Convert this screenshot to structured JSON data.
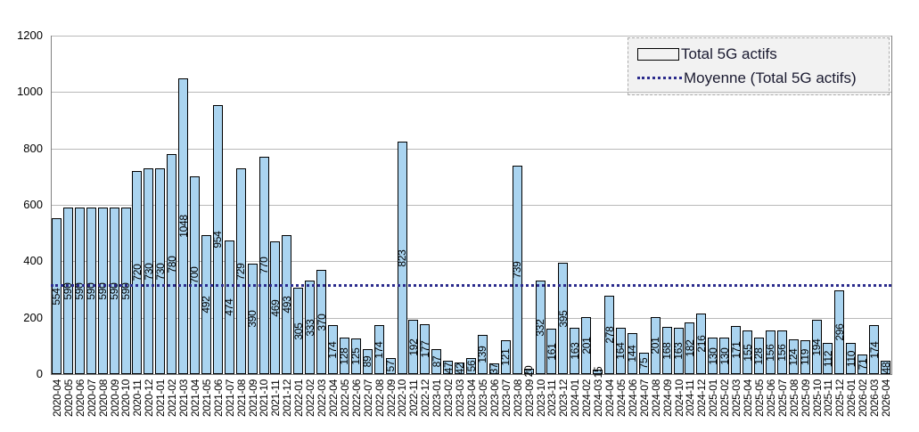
{
  "chart_data": {
    "type": "bar",
    "title": "",
    "xlabel": "",
    "ylabel": "",
    "ylim": [
      0,
      1200
    ],
    "yticks": [
      0,
      200,
      400,
      600,
      800,
      1000,
      1200
    ],
    "grid": true,
    "legend_position": "top-right",
    "categories": [
      "2020-04",
      "2020-05",
      "2020-06",
      "2020-07",
      "2020-08",
      "2020-09",
      "2020-10",
      "2020-11",
      "2020-12",
      "2021-01",
      "2021-02",
      "2021-03",
      "2021-04",
      "2021-05",
      "2021-06",
      "2021-07",
      "2021-08",
      "2021-09",
      "2021-10",
      "2021-11",
      "2021-12",
      "2022-01",
      "2022-02",
      "2022-03",
      "2022-04",
      "2022-05",
      "2022-06",
      "2022-07",
      "2022-08",
      "2022-09",
      "2022-10",
      "2022-11",
      "2022-12",
      "2023-01",
      "2023-02",
      "2023-03",
      "2023-04",
      "2023-05",
      "2023-06",
      "2023-07",
      "2023-08",
      "2023-09",
      "2023-10",
      "2023-11",
      "2023-12",
      "2024-01",
      "2024-02",
      "2024-03",
      "2024-04",
      "2024-05",
      "2024-06",
      "2024-07",
      "2024-08",
      "2024-09",
      "2024-10",
      "2024-11",
      "2024-12",
      "2025-01",
      "2025-02",
      "2025-03",
      "2025-04",
      "2025-05",
      "2025-06",
      "2025-07",
      "2025-08",
      "2025-09",
      "2025-10",
      "2025-11",
      "2025-12",
      "2026-01",
      "2026-02",
      "2026-03",
      "2026-04"
    ],
    "series": [
      {
        "name": "Total 5G actifs",
        "values": [
          554,
          590,
          590,
          590,
          590,
          590,
          590,
          720,
          730,
          730,
          780,
          1048,
          700,
          492,
          954,
          474,
          729,
          390,
          770,
          469,
          493,
          305,
          333,
          370,
          174,
          128,
          125,
          89,
          174,
          57,
          823,
          192,
          177,
          87,
          47,
          42,
          56,
          139,
          37,
          121,
          739,
          20,
          332,
          161,
          395,
          163,
          201,
          15,
          278,
          164,
          144,
          75,
          201,
          168,
          163,
          182,
          216,
          130,
          130,
          171,
          155,
          128,
          156,
          156,
          124,
          119,
          194,
          112,
          296,
          110,
          71,
          174,
          48
        ]
      }
    ],
    "average_line": {
      "name": "Moyenne (Total 5G actifs)",
      "value": 314.25
    },
    "data_labels": "on, rotated 90deg, centered in bar"
  },
  "legend": {
    "items": [
      {
        "label": "Total 5G actifs",
        "swatch": "bar"
      },
      {
        "label": "Moyenne (Total 5G actifs)",
        "swatch": "dotted-line"
      }
    ]
  },
  "colors": {
    "bar_fill": "#aad4f0",
    "bar_border": "#000000",
    "average_line": "#2b2b8c",
    "gridline": "#b9b9b9",
    "axis": "#808080",
    "legend_bg": "#f2f2f2",
    "text": "#000000"
  }
}
